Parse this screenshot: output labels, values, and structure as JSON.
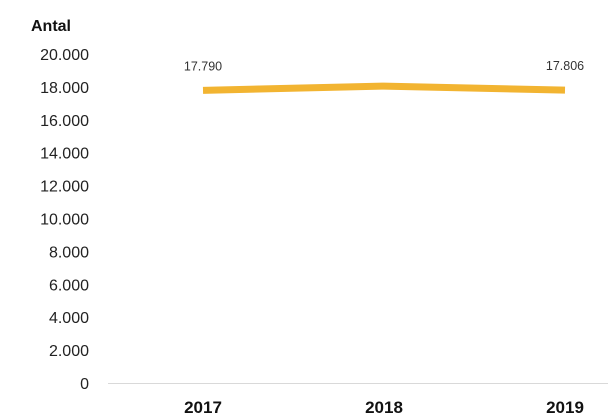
{
  "chart_data": {
    "type": "line",
    "title": "",
    "xlabel": "",
    "ylabel": "Antal",
    "categories": [
      "2017",
      "2018",
      "2019"
    ],
    "series": [
      {
        "values": [
          17790,
          18050,
          17806
        ],
        "color": "#F2B431"
      }
    ],
    "data_labels": [
      "17.790",
      "",
      "17.806"
    ],
    "y_ticks": [
      "0",
      "2.000",
      "4.000",
      "6.000",
      "8.000",
      "10.000",
      "12.000",
      "14.000",
      "16.000",
      "18.000",
      "20.000"
    ],
    "ylim": [
      0,
      20000
    ],
    "grid": false,
    "legend": "none",
    "axis_color": "#d9d9d9"
  }
}
